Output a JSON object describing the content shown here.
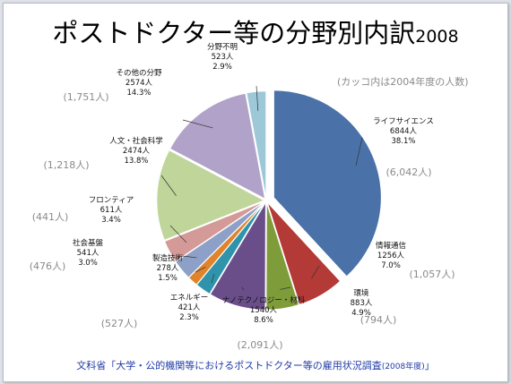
{
  "title": {
    "main": "ポストドクター等の分野別内訳",
    "year": "2008"
  },
  "note": "(カッコ内は2004年度の人数)",
  "source": {
    "main": "文科省「大学・公的機関等におけるポストドクター等の雇用状況調査",
    "detail": "(2008年度)",
    "close": "」"
  },
  "chart_data": {
    "type": "pie",
    "unit": "人",
    "start_angle_deg": 0,
    "direction": "clockwise",
    "slices": [
      {
        "name": "ライフサイエンス",
        "count": "6844人",
        "value": 6844,
        "percent": "38.1%",
        "prev": "(6,042人)",
        "color": "#4a72a8",
        "exploded": true
      },
      {
        "name": "情報通信",
        "count": "1256人",
        "value": 1256,
        "percent": "7.0%",
        "prev": "(1,057人)",
        "color": "#b33a36"
      },
      {
        "name": "環境",
        "count": "883人",
        "value": 883,
        "percent": "4.9%",
        "prev": "(794人)",
        "color": "#7f9c3b"
      },
      {
        "name": "ナノテクノロジー・材料",
        "count": "1540人",
        "value": 1540,
        "percent": "8.6%",
        "prev": "(2,091人)",
        "color": "#6a4e8a"
      },
      {
        "name": "エネルギー",
        "count": "421人",
        "value": 421,
        "percent": "2.3%",
        "prev": "(527人)",
        "color": "#2f94ab"
      },
      {
        "name": "製造技術",
        "count": "278人",
        "value": 278,
        "percent": "1.5%",
        "prev": "",
        "color": "#e0842c"
      },
      {
        "name": "社会基盤",
        "count": "541人",
        "value": 541,
        "percent": "3.0%",
        "prev": "(476人)",
        "color": "#8da0c8"
      },
      {
        "name": "フロンティア",
        "count": "611人",
        "value": 611,
        "percent": "3.4%",
        "prev": "(441人)",
        "color": "#d49a98"
      },
      {
        "name": "人文・社会科学",
        "count": "2474人",
        "value": 2474,
        "percent": "13.8%",
        "prev": "(1,218人)",
        "color": "#bfd59a"
      },
      {
        "name": "その他の分野",
        "count": "2574人",
        "value": 2574,
        "percent": "14.3%",
        "prev": "(1,751人)",
        "color": "#b1a2c9"
      },
      {
        "name": "分野不明",
        "count": "523人",
        "value": 523,
        "percent": "2.9%",
        "prev": "",
        "color": "#9cc8d8"
      }
    ]
  }
}
